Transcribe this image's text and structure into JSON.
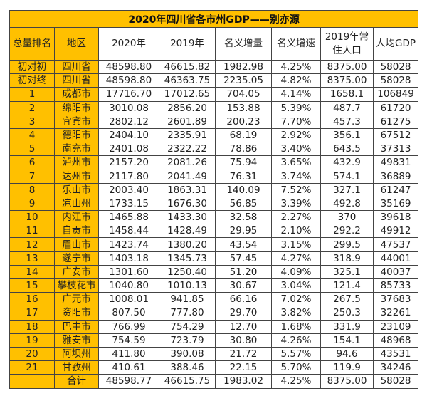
{
  "title": "2020年四川省各市州GDP——别亦源",
  "headers": [
    "总量排名",
    "地区",
    "2020年",
    "2019年",
    "名义增量",
    "名义增速",
    "2019年常住人口",
    "人均GDP"
  ],
  "header_pop_line1": "2019年常",
  "header_pop_line2": "住人口",
  "colors": {
    "gold": "#FFC000",
    "border": "#444444"
  },
  "rows": [
    [
      "初对初",
      "四川省",
      "48598.80",
      "46615.82",
      "1982.98",
      "4.25%",
      "8375.00",
      "58028"
    ],
    [
      "初对终",
      "四川省",
      "48598.80",
      "46363.75",
      "2235.05",
      "4.82%",
      "8375.00",
      "58028"
    ],
    [
      "1",
      "成都市",
      "17716.70",
      "17012.65",
      "704.05",
      "4.14%",
      "1658.1",
      "106849"
    ],
    [
      "2",
      "绵阳市",
      "3010.08",
      "2856.20",
      "153.88",
      "5.39%",
      "487.7",
      "61720"
    ],
    [
      "3",
      "宜宾市",
      "2802.12",
      "2601.89",
      "200.23",
      "7.70%",
      "457.3",
      "61275"
    ],
    [
      "4",
      "德阳市",
      "2404.10",
      "2335.91",
      "68.19",
      "2.92%",
      "356.1",
      "67512"
    ],
    [
      "5",
      "南充市",
      "2401.08",
      "2322.22",
      "78.86",
      "3.40%",
      "643.5",
      "37313"
    ],
    [
      "6",
      "泸州市",
      "2157.20",
      "2081.26",
      "75.94",
      "3.65%",
      "432.9",
      "49831"
    ],
    [
      "7",
      "达州市",
      "2117.80",
      "2041.49",
      "76.31",
      "3.74%",
      "574.1",
      "36889"
    ],
    [
      "8",
      "乐山市",
      "2003.40",
      "1863.31",
      "140.09",
      "7.52%",
      "327.1",
      "61247"
    ],
    [
      "9",
      "凉山州",
      "1733.15",
      "1676.30",
      "56.85",
      "3.39%",
      "492.8",
      "35169"
    ],
    [
      "10",
      "内江市",
      "1465.88",
      "1433.30",
      "32.58",
      "2.27%",
      "370",
      "39618"
    ],
    [
      "11",
      "自贡市",
      "1458.44",
      "1428.49",
      "29.95",
      "2.10%",
      "292.2",
      "49912"
    ],
    [
      "12",
      "眉山市",
      "1423.74",
      "1380.20",
      "43.54",
      "3.15%",
      "299.5",
      "47537"
    ],
    [
      "13",
      "遂宁市",
      "1403.18",
      "1345.73",
      "57.45",
      "4.27%",
      "318.9",
      "44001"
    ],
    [
      "14",
      "广安市",
      "1301.60",
      "1250.40",
      "51.20",
      "4.09%",
      "325.1",
      "40037"
    ],
    [
      "15",
      "攀枝花市",
      "1040.80",
      "1010.13",
      "30.67",
      "3.04%",
      "121.4",
      "85733"
    ],
    [
      "16",
      "广元市",
      "1008.01",
      "941.85",
      "66.16",
      "7.02%",
      "267.5",
      "37683"
    ],
    [
      "17",
      "资阳市",
      "807.50",
      "777.80",
      "29.70",
      "3.82%",
      "250.3",
      "32261"
    ],
    [
      "18",
      "巴中市",
      "766.99",
      "754.29",
      "12.70",
      "1.68%",
      "331.9",
      "23109"
    ],
    [
      "19",
      "雅安市",
      "754.59",
      "723.79",
      "30.80",
      "4.26%",
      "154.1",
      "48968"
    ],
    [
      "20",
      "阿坝州",
      "411.80",
      "390.08",
      "21.72",
      "5.57%",
      "94.6",
      "43531"
    ],
    [
      "21",
      "甘孜州",
      "410.61",
      "388.46",
      "22.15",
      "5.70%",
      "119.9",
      "34246"
    ],
    [
      "",
      "合计",
      "48598.77",
      "46615.75",
      "1983.02",
      "4.25%",
      "8375.00",
      "58028"
    ]
  ]
}
